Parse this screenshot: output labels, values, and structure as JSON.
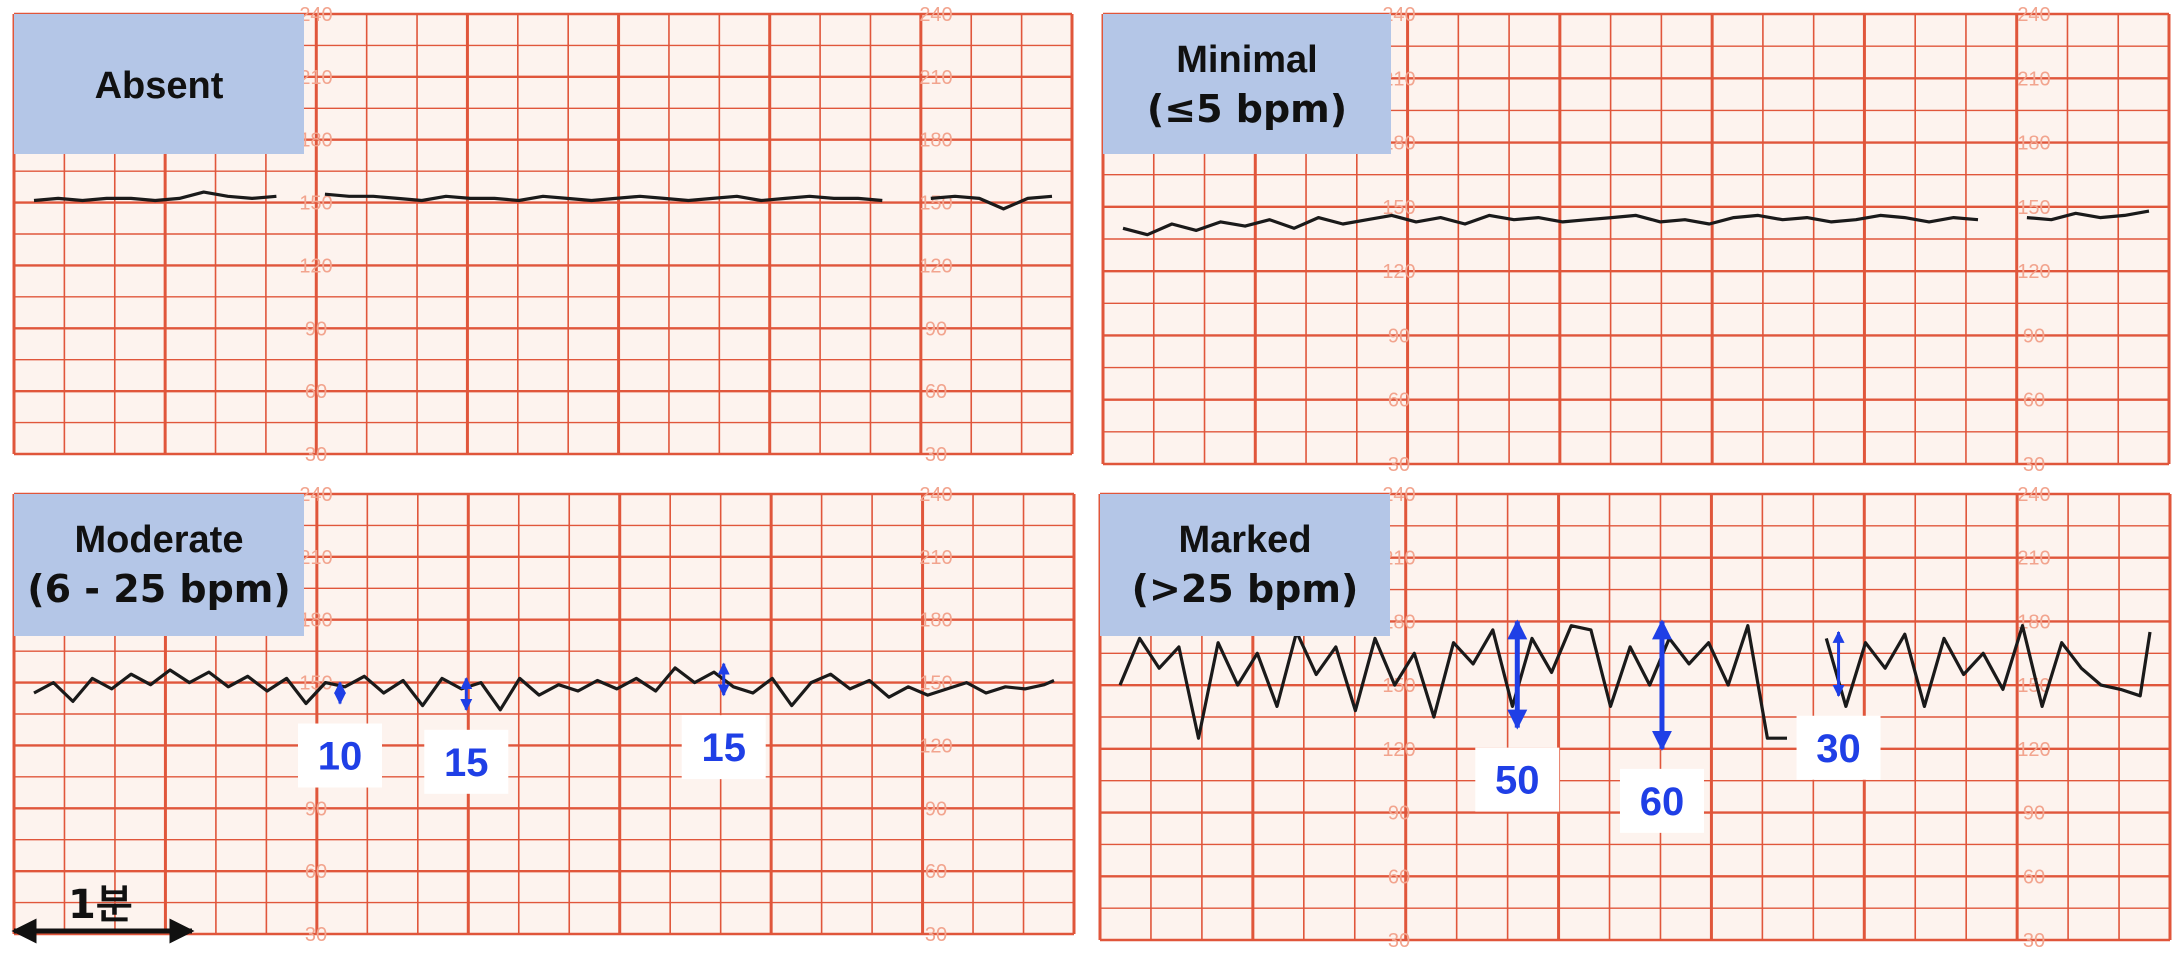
{
  "chart_data": [
    {
      "type": "line",
      "title": "Absent",
      "subtitle": "",
      "y_ticks": [
        "240",
        "210",
        "180",
        "150",
        "120",
        "90",
        "60",
        "30"
      ],
      "ylim": [
        30,
        240
      ],
      "line_color": "#1a1a1a",
      "series": [
        {
          "x": [
            0,
            0.5,
            1,
            1.5,
            2,
            2.5,
            3,
            3.5,
            4,
            4.5,
            5,
            5.5,
            6,
            6.5,
            7,
            7.5,
            8,
            8.5,
            9,
            9.5,
            10,
            10.5,
            11,
            11.5,
            12,
            12.5,
            13,
            13.5,
            14,
            14.5,
            15,
            15.5,
            16,
            16.5,
            17,
            17.5,
            18,
            18.5,
            19,
            19.5,
            20,
            20.5,
            21
          ],
          "y": [
            151,
            152,
            151,
            152,
            152,
            151,
            152,
            155,
            153,
            152,
            153,
            152,
            154,
            153,
            153,
            152,
            151,
            153,
            152,
            152,
            151,
            153,
            152,
            151,
            152,
            153,
            152,
            151,
            152,
            153,
            151,
            152,
            153,
            152,
            152,
            151,
            152,
            152,
            153,
            152,
            147,
            152,
            153
          ]
        }
      ],
      "gaps": [
        [
          5,
          5.8
        ],
        [
          17.9,
          18.3
        ]
      ],
      "annotations": []
    },
    {
      "type": "line",
      "title": "Minimal",
      "subtitle": "(≤5 bpm)",
      "y_ticks": [
        "240",
        "210",
        "180",
        "150",
        "120",
        "90",
        "60",
        "30"
      ],
      "ylim": [
        30,
        240
      ],
      "line_color": "#1a1a1a",
      "series": [
        {
          "x": [
            0,
            0.5,
            1,
            1.5,
            2,
            2.5,
            3,
            3.5,
            4,
            4.5,
            5,
            5.5,
            6,
            6.5,
            7,
            7.5,
            8,
            8.5,
            9,
            9.5,
            10,
            10.5,
            11,
            11.5,
            12,
            12.5,
            13,
            13.5,
            14,
            14.5,
            15,
            15.5,
            16,
            16.5,
            17,
            17.5,
            18,
            18.5,
            19,
            19.5,
            20,
            20.5,
            21
          ],
          "y": [
            140,
            137,
            142,
            139,
            143,
            141,
            144,
            140,
            145,
            142,
            144,
            146,
            143,
            145,
            142,
            146,
            144,
            145,
            143,
            144,
            145,
            146,
            143,
            144,
            142,
            145,
            146,
            144,
            145,
            143,
            144,
            146,
            145,
            143,
            145,
            144,
            146,
            145,
            144,
            147,
            145,
            146,
            148
          ]
        }
      ],
      "gaps": [
        [
          17.9,
          18.3
        ]
      ],
      "annotations": []
    },
    {
      "type": "line",
      "title": "Moderate",
      "subtitle": "(6 - 25 bpm)",
      "y_ticks": [
        "240",
        "210",
        "180",
        "150",
        "120",
        "90",
        "60",
        "30"
      ],
      "ylim": [
        30,
        240
      ],
      "line_color": "#1a1a1a",
      "series": [
        {
          "x": [
            0,
            0.4,
            0.8,
            1.2,
            1.6,
            2,
            2.4,
            2.8,
            3.2,
            3.6,
            4,
            4.4,
            4.8,
            5.2,
            5.6,
            6,
            6.4,
            6.8,
            7.2,
            7.6,
            8,
            8.4,
            8.8,
            9.2,
            9.6,
            10,
            10.4,
            10.8,
            11.2,
            11.6,
            12,
            12.4,
            12.8,
            13.2,
            13.6,
            14,
            14.4,
            14.8,
            15.2,
            15.6,
            16,
            16.4,
            16.8,
            17.2,
            17.6,
            18,
            18.4,
            18.8,
            19.2,
            19.6,
            20,
            20.4,
            20.8,
            21
          ],
          "y": [
            145,
            150,
            141,
            152,
            147,
            154,
            149,
            156,
            150,
            155,
            148,
            153,
            146,
            152,
            140,
            150,
            148,
            153,
            145,
            151,
            139,
            152,
            147,
            150,
            137,
            152,
            144,
            149,
            146,
            151,
            147,
            152,
            146,
            157,
            150,
            155,
            148,
            145,
            152,
            139,
            150,
            154,
            147,
            151,
            143,
            148,
            144,
            147,
            150,
            145,
            148,
            147,
            149,
            151
          ]
        }
      ],
      "gaps": [
        [
          18.05,
          18.4
        ]
      ],
      "annotations": [
        {
          "label": "10",
          "x": 6.3,
          "y_from": 140,
          "y_to": 150
        },
        {
          "label": "15",
          "x": 8.9,
          "y_from": 137,
          "y_to": 152
        },
        {
          "label": "15",
          "x": 14.2,
          "y_from": 144,
          "y_to": 159
        }
      ]
    },
    {
      "type": "line",
      "title": "Marked",
      "subtitle": "(>25 bpm)",
      "y_ticks": [
        "240",
        "210",
        "180",
        "150",
        "120",
        "90",
        "60",
        "30"
      ],
      "ylim": [
        30,
        240
      ],
      "line_color": "#1a1a1a",
      "series": [
        {
          "x": [
            0,
            0.4,
            0.8,
            1.2,
            1.6,
            2,
            2.4,
            2.8,
            3.2,
            3.6,
            4,
            4.4,
            4.8,
            5.2,
            5.6,
            6,
            6.4,
            6.8,
            7.2,
            7.6,
            8,
            8.4,
            8.8,
            9.2,
            9.6,
            10,
            10.4,
            10.8,
            11.2,
            11.6,
            12,
            12.4,
            12.8,
            13.2,
            13.6,
            14,
            14.4,
            14.8,
            15.2,
            15.6,
            16,
            16.4,
            16.8,
            17.2,
            17.6,
            18,
            18.4,
            18.8,
            19.2,
            19.6,
            20,
            20.4,
            20.8,
            21
          ],
          "y": [
            150,
            172,
            158,
            168,
            125,
            170,
            150,
            165,
            140,
            175,
            155,
            168,
            138,
            172,
            150,
            165,
            135,
            170,
            160,
            176,
            140,
            172,
            156,
            178,
            176,
            140,
            168,
            150,
            172,
            160,
            170,
            150,
            178,
            125,
            125,
            160,
            172,
            140,
            170,
            158,
            174,
            140,
            172,
            155,
            165,
            148,
            178,
            140,
            170,
            158,
            150,
            148,
            145,
            175
          ]
        }
      ],
      "gaps": [
        [
          13.7,
          14.2
        ],
        [
          19.3,
          19.6
        ],
        [
          20.4,
          20.7
        ]
      ],
      "annotations": [
        {
          "label": "50",
          "x": 8.1,
          "y_from": 130,
          "y_to": 180
        },
        {
          "label": "60",
          "x": 11.05,
          "y_from": 120,
          "y_to": 180
        },
        {
          "label": "30",
          "x": 14.65,
          "y_from": 145,
          "y_to": 175
        }
      ]
    }
  ],
  "scale_bar": {
    "label": "1분"
  },
  "colors": {
    "grid": "#e0563b",
    "grid_fine": "#f2a48e",
    "paper": "#fdf3ee",
    "label_bg": "#b4c6e7",
    "annotation": "#1f3fe6"
  }
}
